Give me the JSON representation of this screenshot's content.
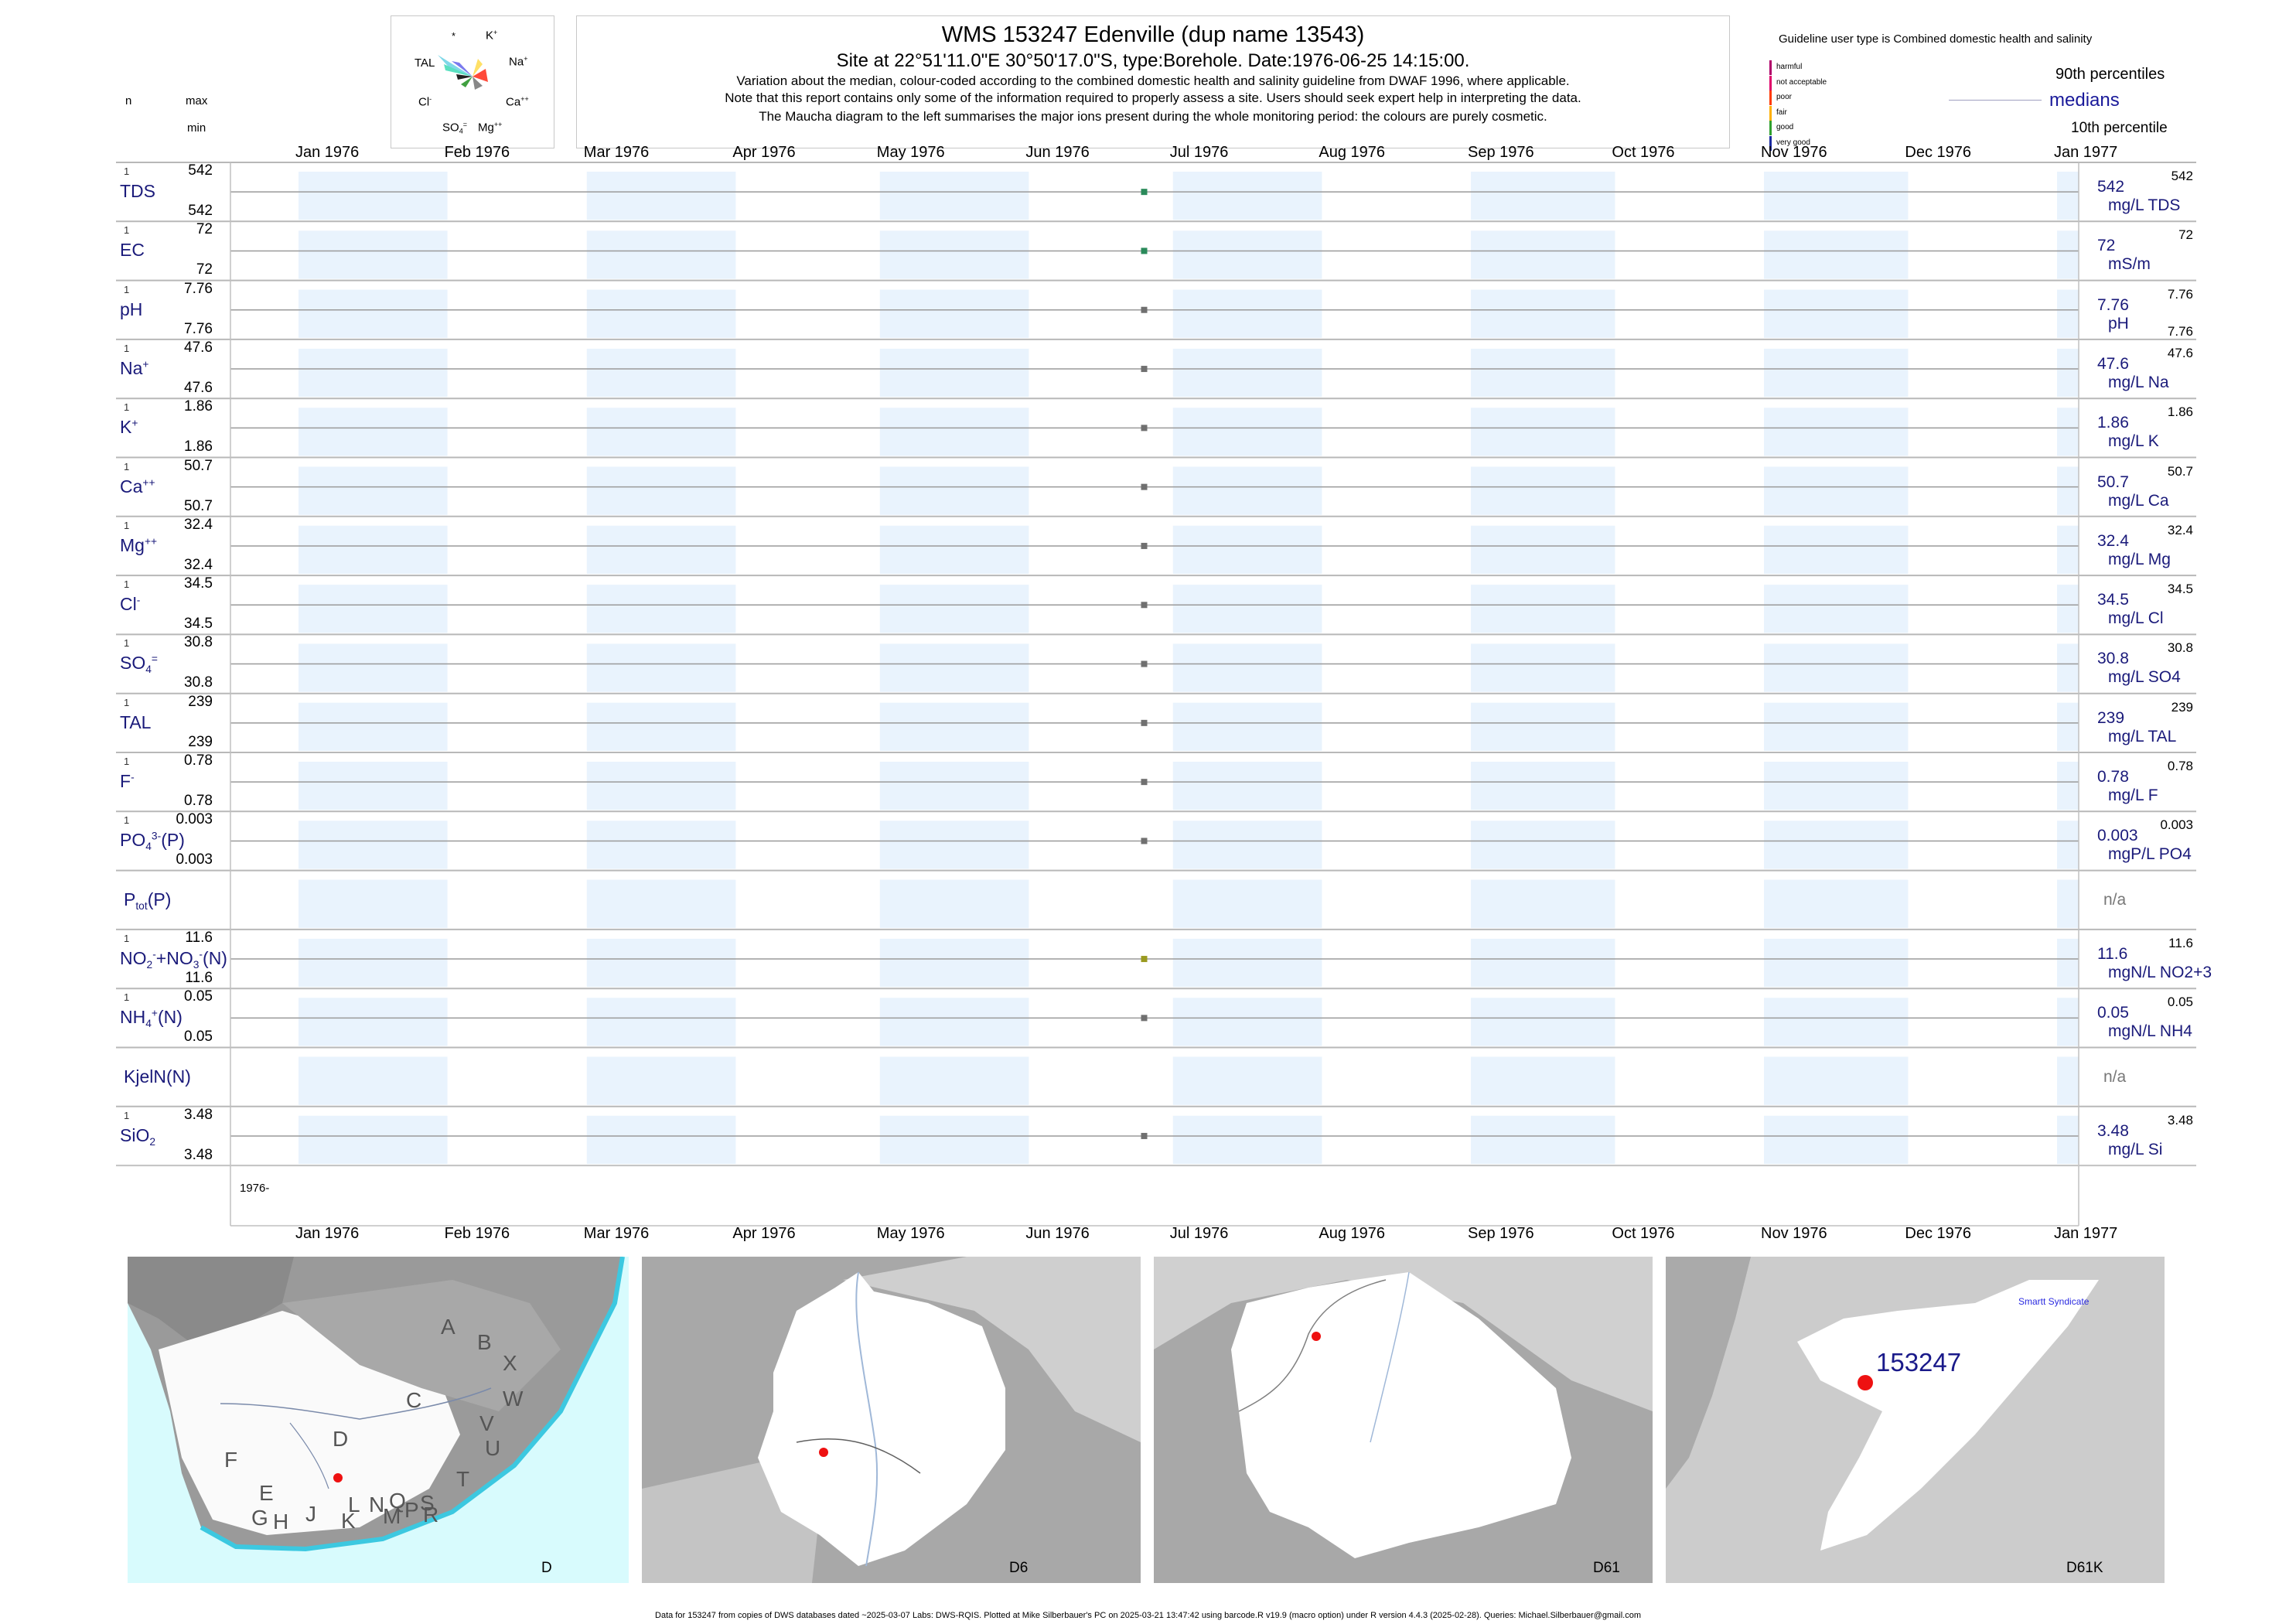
{
  "header": {
    "title": "WMS 153247  Edenville (dup name 13543)",
    "site": "Site at 22°51'11.0\"E 30°50'17.0\"S, type:Borehole. Date:1976-06-25 14:15:00.",
    "note1": "Variation about the median,  colour-coded according to the combined domestic health and salinity guideline from DWAF 1996, where applicable.",
    "note2": "Note that this report contains only some of the information required to properly assess a site. Users should seek expert help in interpreting the data.",
    "note3": "The Maucha diagram to the left summarises the major ions present during the whole monitoring period: the colours are purely cosmetic."
  },
  "guideline": {
    "title": "Guideline user type is Combined domestic health and salinity",
    "levels": [
      {
        "label": "harmful",
        "color": "#b0006a"
      },
      {
        "label": "not acceptable",
        "color": "#e0006a"
      },
      {
        "label": "poor",
        "color": "#ff3a00"
      },
      {
        "label": "fair",
        "color": "#ffb000"
      },
      {
        "label": "good",
        "color": "#30a030"
      },
      {
        "label": "very good",
        "color": "#1a2aa0"
      }
    ],
    "p90": "90th percentiles",
    "medians": "medians",
    "p10": "10th percentile"
  },
  "left_header": {
    "n": "n",
    "max": "max",
    "min": "min"
  },
  "maucha": {
    "labels": {
      "star": "*",
      "k": "K",
      "k_sup": "+",
      "na": "Na",
      "na_sup": "+",
      "tal": "TAL",
      "ca": "Ca",
      "ca_sup": "++",
      "cl": "Cl",
      "cl_sup": "-",
      "so4": "SO",
      "so4_sub": "4",
      "so4_sup": "=",
      "mg": "Mg",
      "mg_sup": "++"
    }
  },
  "axis": {
    "months": [
      "Jan 1976",
      "Feb 1976",
      "Mar 1976",
      "Apr 1976",
      "May 1976",
      "Jun 1976",
      "Jul 1976",
      "Aug 1976",
      "Sep 1976",
      "Oct 1976",
      "Nov 1976",
      "Dec 1976",
      "Jan 1977"
    ],
    "year_label": "1976-"
  },
  "chart_data": {
    "type": "scatter",
    "x_range": [
      "1976-01-01",
      "1977-01-01"
    ],
    "sample_date": "1976-06-25",
    "variables": [
      {
        "key": "TDS",
        "n": "1",
        "max": "542",
        "min": "542",
        "median": "542",
        "p90": "542",
        "p10": "",
        "unit": "mg/L TDS",
        "color": "#2a8a5a",
        "value": 542
      },
      {
        "key": "EC",
        "n": "1",
        "max": "72",
        "min": "72",
        "median": "72",
        "p90": "72",
        "p10": "",
        "unit": "mS/m",
        "color": "#2a8a5a",
        "value": 72
      },
      {
        "key": "pH",
        "n": "1",
        "max": "7.76",
        "min": "7.76",
        "median": "7.76",
        "p90": "7.76",
        "p10": "7.76",
        "unit": "pH",
        "color": "#707070",
        "value": 7.76
      },
      {
        "key": "Na",
        "n": "1",
        "max": "47.6",
        "min": "47.6",
        "median": "47.6",
        "p90": "47.6",
        "p10": "",
        "unit": "mg/L Na",
        "color": "#707070",
        "value": 47.6
      },
      {
        "key": "K",
        "n": "1",
        "max": "1.86",
        "min": "1.86",
        "median": "1.86",
        "p90": "1.86",
        "p10": "",
        "unit": "mg/L K",
        "color": "#707070",
        "value": 1.86
      },
      {
        "key": "Ca",
        "n": "1",
        "max": "50.7",
        "min": "50.7",
        "median": "50.7",
        "p90": "50.7",
        "p10": "",
        "unit": "mg/L Ca",
        "color": "#707070",
        "value": 50.7
      },
      {
        "key": "Mg",
        "n": "1",
        "max": "32.4",
        "min": "32.4",
        "median": "32.4",
        "p90": "32.4",
        "p10": "",
        "unit": "mg/L Mg",
        "color": "#707070",
        "value": 32.4
      },
      {
        "key": "Cl",
        "n": "1",
        "max": "34.5",
        "min": "34.5",
        "median": "34.5",
        "p90": "34.5",
        "p10": "",
        "unit": "mg/L Cl",
        "color": "#707070",
        "value": 34.5
      },
      {
        "key": "SO4",
        "n": "1",
        "max": "30.8",
        "min": "30.8",
        "median": "30.8",
        "p90": "30.8",
        "p10": "",
        "unit": "mg/L SO4",
        "color": "#707070",
        "value": 30.8
      },
      {
        "key": "TAL",
        "n": "1",
        "max": "239",
        "min": "239",
        "median": "239",
        "p90": "239",
        "p10": "",
        "unit": "mg/L TAL",
        "color": "#707070",
        "value": 239
      },
      {
        "key": "F",
        "n": "1",
        "max": "0.78",
        "min": "0.78",
        "median": "0.78",
        "p90": "0.78",
        "p10": "",
        "unit": "mg/L F",
        "color": "#707070",
        "value": 0.78
      },
      {
        "key": "PO4",
        "n": "1",
        "max": "0.003",
        "min": "0.003",
        "median": "0.003",
        "p90": "0.003",
        "p10": "",
        "unit": "mgP/L PO4",
        "color": "#707070",
        "value": 0.003
      },
      {
        "key": "Ptot",
        "n": "",
        "max": "",
        "min": "",
        "median": "",
        "p90": "",
        "p10": "",
        "unit": "",
        "na": "n/a",
        "color": "#707070",
        "value": null
      },
      {
        "key": "NOx",
        "n": "1",
        "max": "11.6",
        "min": "11.6",
        "median": "11.6",
        "p90": "11.6",
        "p10": "",
        "unit": "mgN/L NO2+3",
        "color": "#9a9a20",
        "value": 11.6
      },
      {
        "key": "NH4",
        "n": "1",
        "max": "0.05",
        "min": "0.05",
        "median": "0.05",
        "p90": "0.05",
        "p10": "",
        "unit": "mgN/L NH4",
        "color": "#707070",
        "value": 0.05
      },
      {
        "key": "KjelN",
        "n": "",
        "max": "",
        "min": "",
        "median": "",
        "p90": "",
        "p10": "",
        "unit": "",
        "na": "n/a",
        "color": "#707070",
        "value": null
      },
      {
        "key": "SiO2",
        "n": "1",
        "max": "3.48",
        "min": "3.48",
        "median": "3.48",
        "p90": "3.48",
        "p10": "",
        "unit": "mg/L Si",
        "color": "#707070",
        "value": 3.48
      }
    ]
  },
  "row_names": {
    "TDS": "TDS",
    "EC": "EC",
    "pH": "pH",
    "Na": "Na",
    "Na_sup": "+",
    "K": "K",
    "K_sup": "+",
    "Ca": "Ca",
    "Ca_sup": "++",
    "Mg": "Mg",
    "Mg_sup": "++",
    "Cl": "Cl",
    "Cl_sup": "-",
    "SO4": "SO",
    "SO4_sub": "4",
    "SO4_sup": "=",
    "TAL": "TAL",
    "F": "F",
    "F_sup": "-",
    "PO4": "PO",
    "PO4_sub": "4",
    "PO4_sup": "3-",
    "PO4_tail": "(P)",
    "Ptot": "P",
    "Ptot_sub": "tot",
    "Ptot_tail": "(P)",
    "NOx_a": "NO",
    "NOx_a_sub": "2",
    "NOx_a_sup": "-",
    "NOx_plus": "+",
    "NOx_b": "NO",
    "NOx_b_sub": "3",
    "NOx_b_sup": "-",
    "NOx_tail": "(N)",
    "NH4": "NH",
    "NH4_sub": "4",
    "NH4_sup": "+",
    "NH4_tail": "(N)",
    "KjelN": "KjelN(N)",
    "SiO2": "SiO",
    "SiO2_sub": "2"
  },
  "maps": [
    {
      "label": "D",
      "regions": [
        "A",
        "B",
        "X",
        "C",
        "W",
        "D",
        "V",
        "U",
        "F",
        "T",
        "E",
        "S",
        "G",
        "H",
        "J",
        "L",
        "N",
        "Q",
        "R",
        "K",
        "M",
        "P"
      ]
    },
    {
      "label": "D6"
    },
    {
      "label": "D61"
    },
    {
      "label": "D61K",
      "site": "153247",
      "town": "Smartt Syndicate"
    }
  ],
  "footer": "Data for 153247 from copies of DWS databases dated ~2025-03-07 Labs: DWS-RQIS. Plotted at Mike Silberbauer's PC on 2025-03-21 13:47:42 using barcode.R v19.9 (macro option) under R version 4.4.3 (2025-02-28). Queries: Michael.Silberbauer@gmail.com"
}
